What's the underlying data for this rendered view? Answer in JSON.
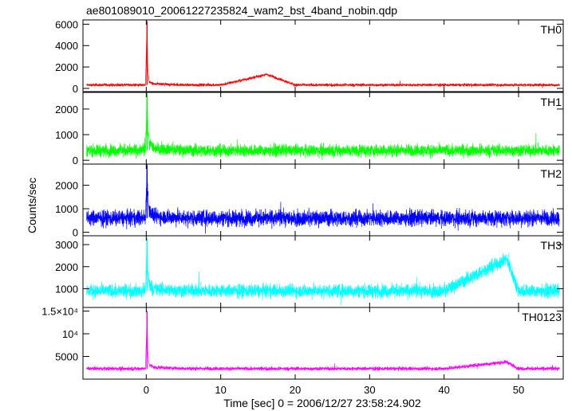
{
  "chart_data": {
    "type": "line",
    "title": "ae801089010_20061227235824_wam2_bst_4band_nobin.qdp",
    "xlabel": "Time [sec] 0 = 2006/12/27 23:58:24.902",
    "ylabel": "Counts/sec",
    "xlim": [
      -8.5,
      56
    ],
    "x_ticks": [
      0,
      10,
      20,
      30,
      40,
      50
    ],
    "x_tick_labels": [
      "0",
      "10",
      "20",
      "30",
      "40",
      "50"
    ],
    "x_step_sec": 0.015625,
    "grid": false,
    "burst": {
      "peak_time_sec": 0.1
    },
    "panels": [
      {
        "name": "TH0",
        "color": "#ff0000",
        "ylim": [
          -300,
          6400
        ],
        "y_ticks": [
          0,
          2000,
          4000,
          6000
        ],
        "y_tick_labels": [
          "0",
          "2000",
          "4000",
          "6000"
        ],
        "baseline": 320,
        "noise_peak_to_peak": 400,
        "peak": 6300,
        "x": [
          -8,
          -5,
          -1,
          -0.1,
          0.05,
          0.1,
          0.2,
          0.4,
          1,
          5,
          10,
          16.2,
          20,
          30,
          40,
          50,
          55.5
        ],
        "y": [
          320,
          320,
          320,
          330,
          4500,
          6300,
          1800,
          600,
          400,
          330,
          320,
          1300,
          320,
          320,
          320,
          320,
          320
        ]
      },
      {
        "name": "TH1",
        "color": "#00ff00",
        "ylim": [
          -150,
          2650
        ],
        "y_ticks": [
          0,
          1000,
          2000
        ],
        "y_tick_labels": [
          "0",
          "1000",
          "2000"
        ],
        "baseline": 380,
        "noise_peak_to_peak": 700,
        "peak": 2600,
        "x": [
          -8,
          -5,
          -1,
          -0.1,
          0.05,
          0.1,
          0.2,
          0.4,
          1,
          5,
          10,
          20,
          30,
          40,
          50,
          55.5
        ],
        "y": [
          380,
          380,
          380,
          400,
          1900,
          2600,
          1300,
          700,
          480,
          390,
          380,
          380,
          380,
          380,
          380,
          380
        ]
      },
      {
        "name": "TH2",
        "color": "#0000ff",
        "ylim": [
          -150,
          2900
        ],
        "y_ticks": [
          0,
          1000,
          2000
        ],
        "y_tick_labels": [
          "0",
          "1000",
          "2000"
        ],
        "baseline": 600,
        "noise_peak_to_peak": 1000,
        "peak": 2850,
        "x": [
          -8,
          -5,
          -1,
          -0.1,
          0.05,
          0.1,
          0.2,
          0.4,
          1,
          5,
          10,
          20,
          30,
          40,
          50,
          55.5
        ],
        "y": [
          600,
          600,
          600,
          620,
          2200,
          2850,
          1700,
          900,
          680,
          610,
          600,
          600,
          600,
          600,
          600,
          600
        ]
      },
      {
        "name": "TH3",
        "color": "#00ffff",
        "ylim": [
          150,
          3400
        ],
        "y_ticks": [
          1000,
          2000,
          3000
        ],
        "y_tick_labels": [
          "1000",
          "2000",
          "3000"
        ],
        "baseline": 900,
        "noise_peak_to_peak": 900,
        "peak": 3300,
        "x": [
          -8,
          -5,
          -1,
          -0.1,
          0.05,
          0.1,
          0.2,
          0.4,
          1,
          5,
          10,
          20,
          30,
          40,
          48.4,
          50,
          55.5
        ],
        "y": [
          900,
          900,
          900,
          920,
          2500,
          3300,
          1900,
          1200,
          980,
          910,
          900,
          900,
          900,
          900,
          2350,
          900,
          900
        ]
      },
      {
        "name": "TH0123",
        "color": "#ff00ff",
        "ylim": [
          0,
          15800
        ],
        "y_ticks": [
          5000,
          10000,
          15000
        ],
        "y_tick_labels": [
          "5000",
          "10⁴",
          "1.5×10⁴"
        ],
        "baseline": 2300,
        "noise_peak_to_peak": 1200,
        "peak": 15000,
        "x": [
          -8,
          -5,
          -1,
          -0.1,
          0.05,
          0.1,
          0.2,
          0.4,
          1,
          5,
          10,
          20,
          30,
          40,
          48.4,
          50,
          55.5
        ],
        "y": [
          2300,
          2300,
          2300,
          2350,
          10500,
          15000,
          6000,
          3200,
          2600,
          2320,
          2300,
          2300,
          2300,
          2300,
          3800,
          2300,
          2300
        ]
      }
    ]
  }
}
